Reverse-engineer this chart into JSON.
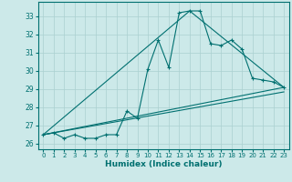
{
  "xlabel": "Humidex (Indice chaleur)",
  "xlim": [
    -0.5,
    23.5
  ],
  "ylim": [
    25.7,
    33.8
  ],
  "yticks": [
    26,
    27,
    28,
    29,
    30,
    31,
    32,
    33
  ],
  "xticks": [
    0,
    1,
    2,
    3,
    4,
    5,
    6,
    7,
    8,
    9,
    10,
    11,
    12,
    13,
    14,
    15,
    16,
    17,
    18,
    19,
    20,
    21,
    22,
    23
  ],
  "bg_color": "#cce9e9",
  "grid_color": "#aad0d0",
  "line_color": "#007070",
  "line1": {
    "x": [
      0,
      1,
      2,
      3,
      4,
      5,
      6,
      7,
      8,
      9,
      10,
      11,
      12,
      13,
      14,
      15,
      16,
      17,
      18,
      19,
      20,
      21,
      22,
      23
    ],
    "y": [
      26.5,
      26.6,
      26.3,
      26.5,
      26.3,
      26.3,
      26.5,
      26.5,
      27.8,
      27.4,
      30.1,
      31.7,
      30.2,
      33.2,
      33.3,
      33.3,
      31.5,
      31.4,
      31.7,
      31.2,
      29.6,
      29.5,
      29.4,
      29.1
    ]
  },
  "line2": {
    "x": [
      0,
      23
    ],
    "y": [
      26.5,
      29.1
    ]
  },
  "line3": {
    "x": [
      0,
      14,
      23
    ],
    "y": [
      26.5,
      33.3,
      29.1
    ]
  },
  "line4": {
    "x": [
      0,
      23
    ],
    "y": [
      26.5,
      28.85
    ]
  }
}
